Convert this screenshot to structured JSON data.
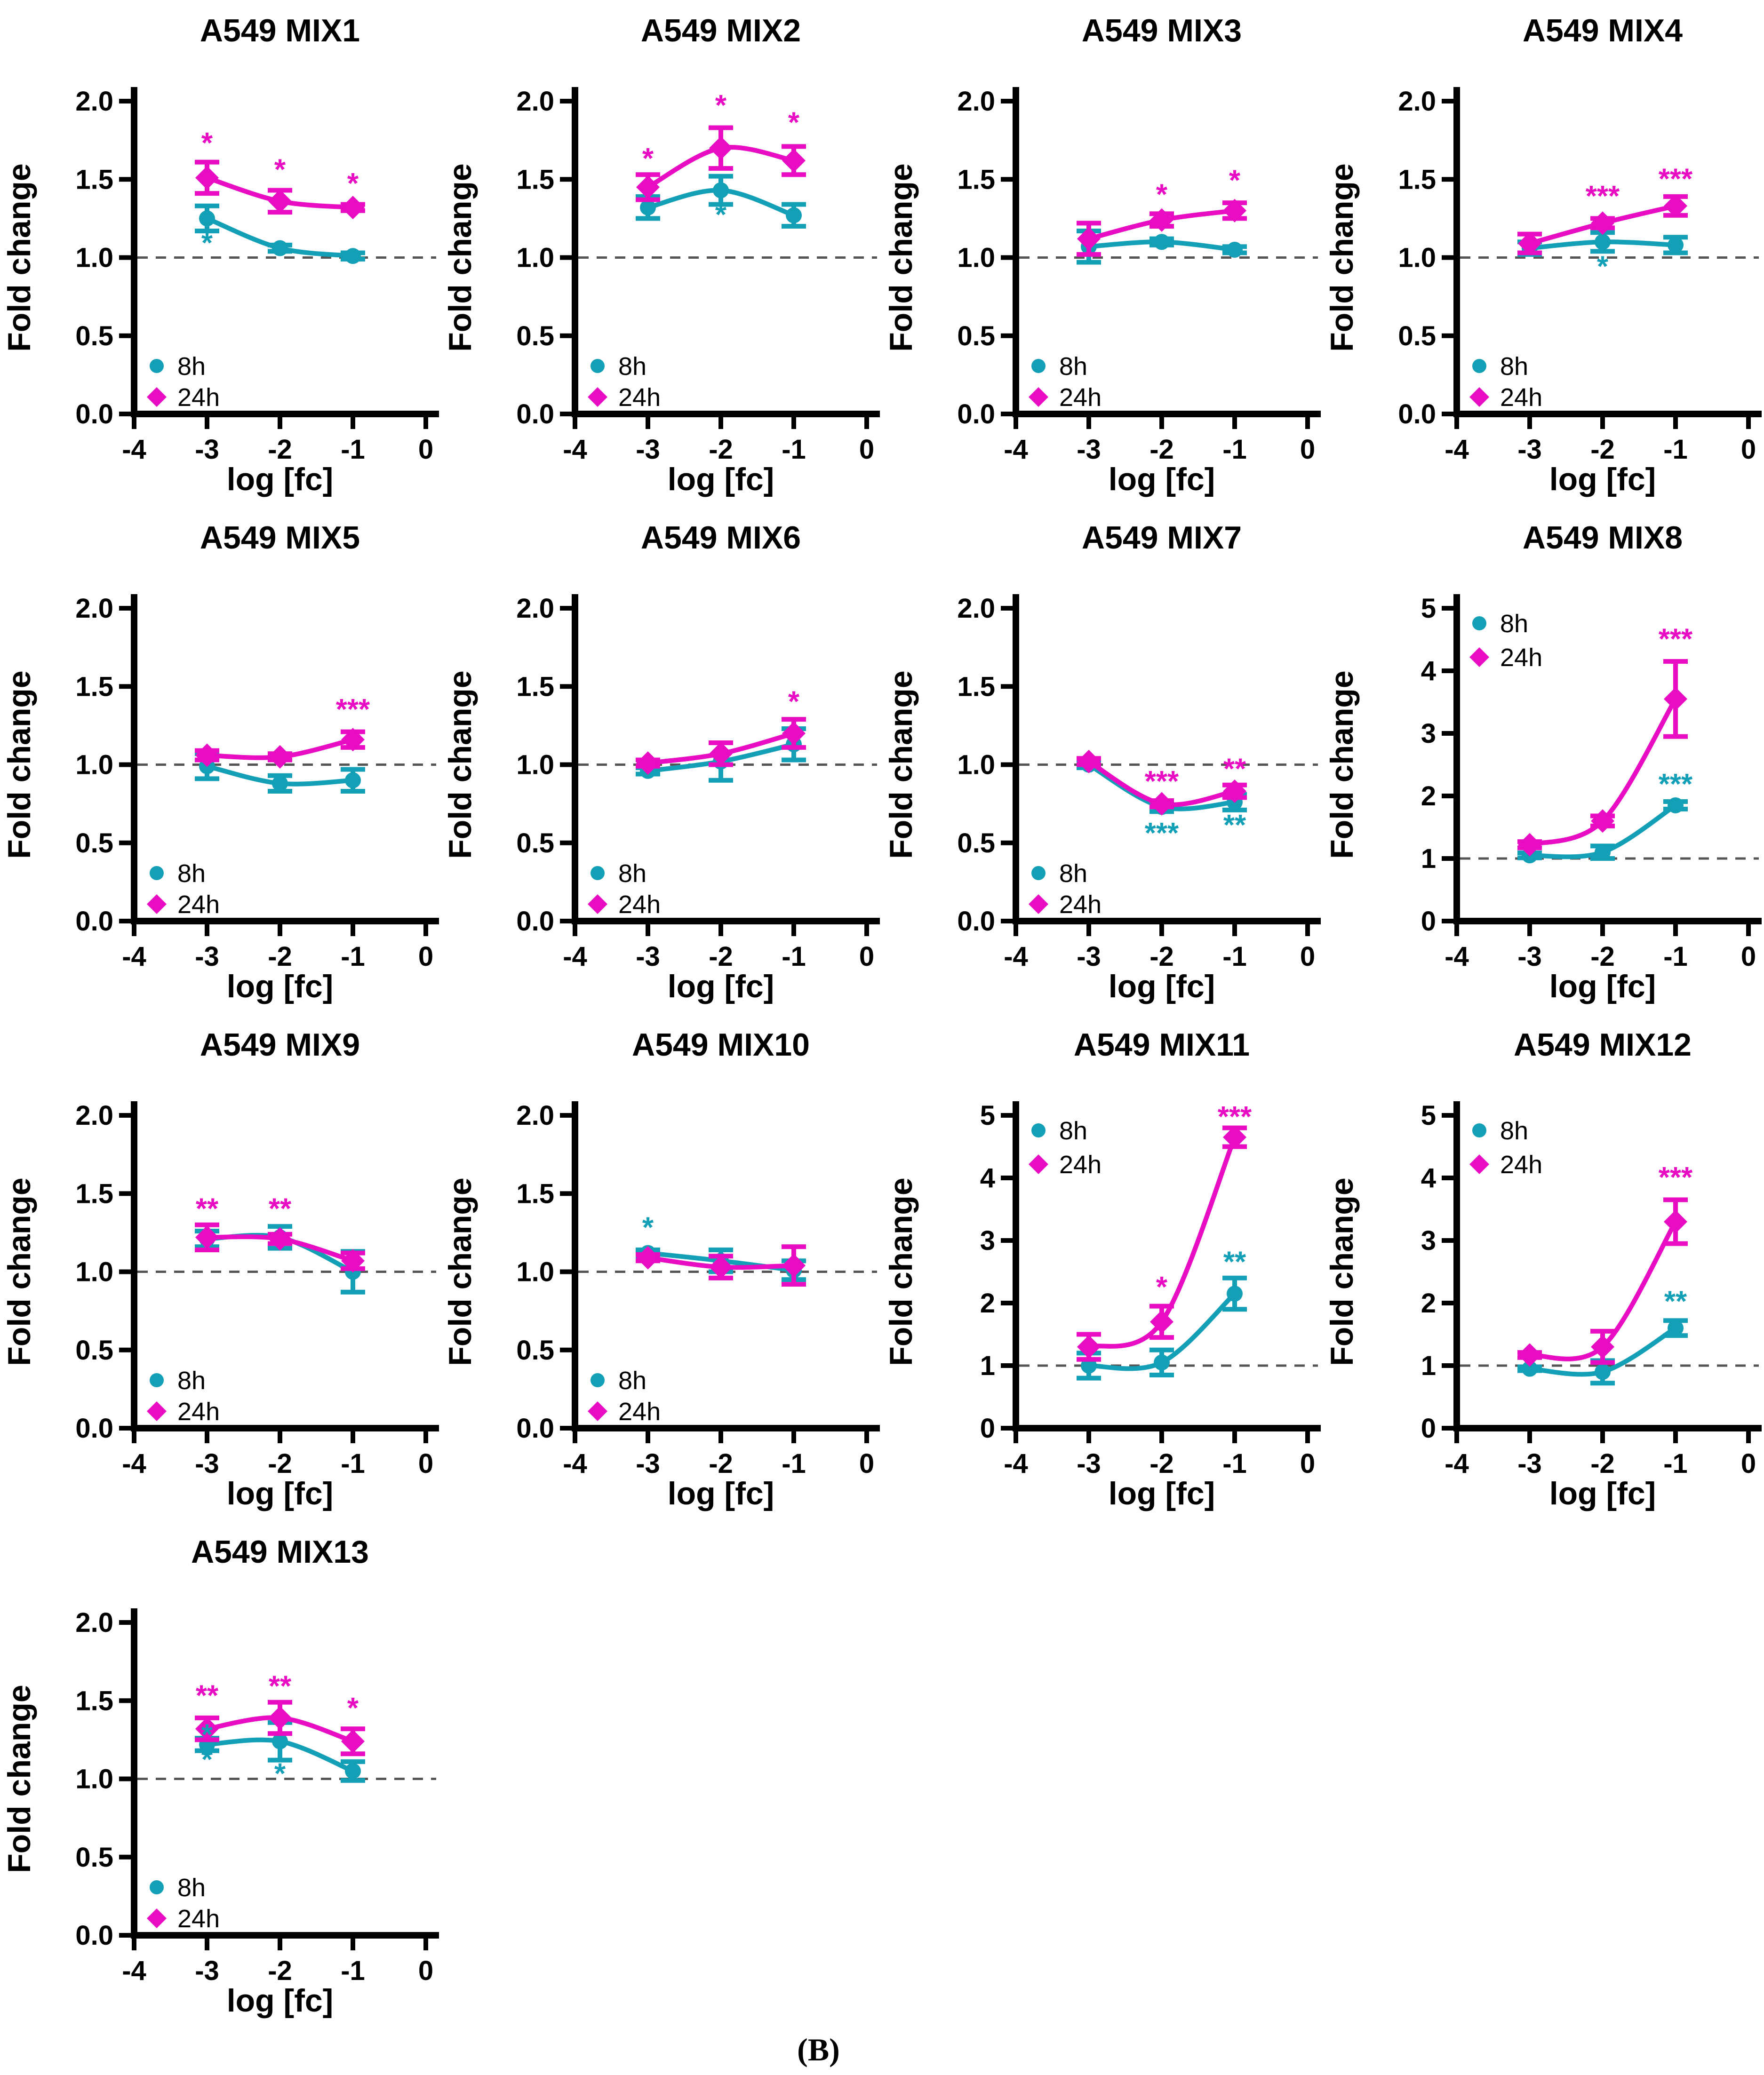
{
  "figure_label": "(B)",
  "legend": {
    "series": [
      {
        "label": "8h"
      },
      {
        "label": "24h"
      }
    ]
  },
  "colors": {
    "8h": "#139FB6",
    "24h": "#E80CC3",
    "axis": "#000000",
    "baseline": "#555555"
  },
  "axis": {
    "xlabel": "log [fc]",
    "ylabel": "Fold change",
    "xticks": [
      -4,
      -3,
      -2,
      -1,
      0
    ]
  },
  "chart_data": [
    {
      "type": "line",
      "title": "A549 MIX1",
      "x": [
        -3,
        -2,
        -1
      ],
      "ylim": [
        0,
        2
      ],
      "yticks": [
        "0.0",
        "0.5",
        "1.0",
        "1.5",
        "2.0"
      ],
      "baseline": 1,
      "legend_pos": "bottom-left",
      "series": [
        {
          "name": "8h",
          "values": [
            1.25,
            1.06,
            1.01
          ],
          "errors": [
            0.08,
            0.02,
            0.02
          ]
        },
        {
          "name": "24h",
          "values": [
            1.51,
            1.36,
            1.32
          ],
          "errors": [
            0.1,
            0.07,
            0.02
          ]
        }
      ],
      "annotations": [
        {
          "x": -3,
          "y": 1.73,
          "text": "*",
          "series": "24h"
        },
        {
          "x": -2,
          "y": 1.56,
          "text": "*",
          "series": "24h"
        },
        {
          "x": -1,
          "y": 1.47,
          "text": "*",
          "series": "24h"
        },
        {
          "x": -3,
          "y": 1.09,
          "text": "*",
          "series": "8h"
        }
      ]
    },
    {
      "type": "line",
      "title": "A549 MIX2",
      "x": [
        -3,
        -2,
        -1
      ],
      "ylim": [
        0,
        2
      ],
      "yticks": [
        "0.0",
        "0.5",
        "1.0",
        "1.5",
        "2.0"
      ],
      "baseline": 1,
      "legend_pos": "bottom-left",
      "series": [
        {
          "name": "8h",
          "values": [
            1.32,
            1.43,
            1.27
          ],
          "errors": [
            0.07,
            0.09,
            0.07
          ]
        },
        {
          "name": "24h",
          "values": [
            1.45,
            1.7,
            1.62
          ],
          "errors": [
            0.08,
            0.13,
            0.09
          ]
        }
      ],
      "annotations": [
        {
          "x": -3,
          "y": 1.63,
          "text": "*",
          "series": "24h"
        },
        {
          "x": -2,
          "y": 1.97,
          "text": "*",
          "series": "24h"
        },
        {
          "x": -1,
          "y": 1.86,
          "text": "*",
          "series": "24h"
        },
        {
          "x": -2,
          "y": 1.27,
          "text": "*",
          "series": "8h"
        }
      ]
    },
    {
      "type": "line",
      "title": "A549 MIX3",
      "x": [
        -3,
        -2,
        -1
      ],
      "ylim": [
        0,
        2
      ],
      "yticks": [
        "0.0",
        "0.5",
        "1.0",
        "1.5",
        "2.0"
      ],
      "baseline": 1,
      "legend_pos": "bottom-left",
      "series": [
        {
          "name": "8h",
          "values": [
            1.07,
            1.1,
            1.05
          ],
          "errors": [
            0.1,
            0.02,
            0.02
          ]
        },
        {
          "name": "24h",
          "values": [
            1.12,
            1.24,
            1.3
          ],
          "errors": [
            0.1,
            0.04,
            0.05
          ]
        }
      ],
      "annotations": [
        {
          "x": -2,
          "y": 1.4,
          "text": "*",
          "series": "24h"
        },
        {
          "x": -1,
          "y": 1.49,
          "text": "*",
          "series": "24h"
        }
      ]
    },
    {
      "type": "line",
      "title": "A549 MIX4",
      "x": [
        -3,
        -2,
        -1
      ],
      "ylim": [
        0,
        2
      ],
      "yticks": [
        "0.0",
        "0.5",
        "1.0",
        "1.5",
        "2.0"
      ],
      "baseline": 1,
      "legend_pos": "bottom-left",
      "series": [
        {
          "name": "8h",
          "values": [
            1.06,
            1.1,
            1.08
          ],
          "errors": [
            0.04,
            0.06,
            0.05
          ]
        },
        {
          "name": "24h",
          "values": [
            1.09,
            1.22,
            1.33
          ],
          "errors": [
            0.06,
            0.03,
            0.06
          ]
        }
      ],
      "annotations": [
        {
          "x": -2,
          "y": 1.39,
          "text": "***",
          "series": "24h"
        },
        {
          "x": -1,
          "y": 1.5,
          "text": "***",
          "series": "24h"
        },
        {
          "x": -2,
          "y": 0.94,
          "text": "*",
          "series": "8h"
        }
      ]
    },
    {
      "type": "line",
      "title": "A549 MIX5",
      "x": [
        -3,
        -2,
        -1
      ],
      "ylim": [
        0,
        2
      ],
      "yticks": [
        "0.0",
        "0.5",
        "1.0",
        "1.5",
        "2.0"
      ],
      "baseline": 1,
      "legend_pos": "bottom-left",
      "series": [
        {
          "name": "8h",
          "values": [
            0.99,
            0.88,
            0.9
          ],
          "errors": [
            0.08,
            0.05,
            0.07
          ]
        },
        {
          "name": "24h",
          "values": [
            1.06,
            1.05,
            1.16
          ],
          "errors": [
            0.03,
            0.02,
            0.05
          ]
        }
      ],
      "annotations": [
        {
          "x": -1,
          "y": 1.35,
          "text": "***",
          "series": "24h"
        }
      ]
    },
    {
      "type": "line",
      "title": "A549 MIX6",
      "x": [
        -3,
        -2,
        -1
      ],
      "ylim": [
        0,
        2
      ],
      "yticks": [
        "0.0",
        "0.5",
        "1.0",
        "1.5",
        "2.0"
      ],
      "baseline": 1,
      "legend_pos": "bottom-left",
      "series": [
        {
          "name": "8h",
          "values": [
            0.96,
            1.02,
            1.13
          ],
          "errors": [
            0.02,
            0.12,
            0.1
          ]
        },
        {
          "name": "24h",
          "values": [
            1.01,
            1.07,
            1.2
          ],
          "errors": [
            0.02,
            0.07,
            0.09
          ]
        }
      ],
      "annotations": [
        {
          "x": -1,
          "y": 1.4,
          "text": "*",
          "series": "24h"
        }
      ]
    },
    {
      "type": "line",
      "title": "A549 MIX7",
      "x": [
        -3,
        -2,
        -1
      ],
      "ylim": [
        0,
        2
      ],
      "yticks": [
        "0.0",
        "0.5",
        "1.0",
        "1.5",
        "2.0"
      ],
      "baseline": 1,
      "legend_pos": "bottom-left",
      "series": [
        {
          "name": "8h",
          "values": [
            1.0,
            0.73,
            0.76
          ],
          "errors": [
            0.02,
            0.03,
            0.05
          ]
        },
        {
          "name": "24h",
          "values": [
            1.02,
            0.75,
            0.83
          ],
          "errors": [
            0.02,
            0.02,
            0.04
          ]
        }
      ],
      "annotations": [
        {
          "x": -2,
          "y": 0.89,
          "text": "***",
          "series": "24h"
        },
        {
          "x": -2,
          "y": 0.56,
          "text": "***",
          "series": "8h"
        },
        {
          "x": -1,
          "y": 0.97,
          "text": "**",
          "series": "24h"
        },
        {
          "x": -1,
          "y": 0.61,
          "text": "**",
          "series": "8h"
        }
      ]
    },
    {
      "type": "line",
      "title": "A549 MIX8",
      "x": [
        -3,
        -2,
        -1
      ],
      "ylim": [
        0,
        5
      ],
      "yticks": [
        "0",
        "1",
        "2",
        "3",
        "4",
        "5"
      ],
      "baseline": 1,
      "legend_pos": "top-left",
      "series": [
        {
          "name": "8h",
          "values": [
            1.05,
            1.1,
            1.85
          ],
          "errors": [
            0.04,
            0.1,
            0.06
          ]
        },
        {
          "name": "24h",
          "values": [
            1.22,
            1.6,
            3.55
          ],
          "errors": [
            0.05,
            0.08,
            0.6
          ]
        }
      ],
      "annotations": [
        {
          "x": -1,
          "y": 4.5,
          "text": "***",
          "series": "24h"
        },
        {
          "x": -1,
          "y": 2.18,
          "text": "***",
          "series": "8h"
        }
      ]
    },
    {
      "type": "line",
      "title": "A549 MIX9",
      "x": [
        -3,
        -2,
        -1
      ],
      "ylim": [
        0,
        2
      ],
      "yticks": [
        "0.0",
        "0.5",
        "1.0",
        "1.5",
        "2.0"
      ],
      "baseline": 1,
      "legend_pos": "bottom-left",
      "series": [
        {
          "name": "8h",
          "values": [
            1.21,
            1.22,
            1.0
          ],
          "errors": [
            0.05,
            0.07,
            0.13
          ]
        },
        {
          "name": "24h",
          "values": [
            1.22,
            1.21,
            1.07
          ],
          "errors": [
            0.08,
            0.03,
            0.05
          ]
        }
      ],
      "annotations": [
        {
          "x": -3,
          "y": 1.4,
          "text": "**",
          "series": "24h"
        },
        {
          "x": -2,
          "y": 1.4,
          "text": "**",
          "series": "24h"
        }
      ]
    },
    {
      "type": "line",
      "title": "A549 MIX10",
      "x": [
        -3,
        -2,
        -1
      ],
      "ylim": [
        0,
        2
      ],
      "yticks": [
        "0.0",
        "0.5",
        "1.0",
        "1.5",
        "2.0"
      ],
      "baseline": 1,
      "legend_pos": "bottom-left",
      "series": [
        {
          "name": "8h",
          "values": [
            1.12,
            1.07,
            1.01
          ],
          "errors": [
            0.02,
            0.07,
            0.06
          ]
        },
        {
          "name": "24h",
          "values": [
            1.09,
            1.03,
            1.04
          ],
          "errors": [
            0.02,
            0.07,
            0.12
          ]
        }
      ],
      "annotations": [
        {
          "x": -3,
          "y": 1.28,
          "text": "*",
          "series": "8h"
        }
      ]
    },
    {
      "type": "line",
      "title": "A549 MIX11",
      "x": [
        -3,
        -2,
        -1
      ],
      "ylim": [
        0,
        5
      ],
      "yticks": [
        "0",
        "1",
        "2",
        "3",
        "4",
        "5"
      ],
      "baseline": 1,
      "legend_pos": "top-left",
      "series": [
        {
          "name": "8h",
          "values": [
            1.0,
            1.05,
            2.15
          ],
          "errors": [
            0.2,
            0.2,
            0.25
          ]
        },
        {
          "name": "24h",
          "values": [
            1.3,
            1.7,
            4.65
          ],
          "errors": [
            0.2,
            0.25,
            0.15
          ]
        }
      ],
      "annotations": [
        {
          "x": -2,
          "y": 2.25,
          "text": "*",
          "series": "24h"
        },
        {
          "x": -1,
          "y": 4.97,
          "text": "***",
          "series": "24h"
        },
        {
          "x": -1,
          "y": 2.65,
          "text": "**",
          "series": "8h"
        }
      ]
    },
    {
      "type": "line",
      "title": "A549 MIX12",
      "x": [
        -3,
        -2,
        -1
      ],
      "ylim": [
        0,
        5
      ],
      "yticks": [
        "0",
        "1",
        "2",
        "3",
        "4",
        "5"
      ],
      "baseline": 1,
      "legend_pos": "top-left",
      "series": [
        {
          "name": "8h",
          "values": [
            0.95,
            0.9,
            1.6
          ],
          "errors": [
            0.03,
            0.18,
            0.12
          ]
        },
        {
          "name": "24h",
          "values": [
            1.17,
            1.3,
            3.3
          ],
          "errors": [
            0.04,
            0.25,
            0.35
          ]
        }
      ],
      "annotations": [
        {
          "x": -1,
          "y": 4.0,
          "text": "***",
          "series": "24h"
        },
        {
          "x": -1,
          "y": 2.02,
          "text": "**",
          "series": "8h"
        }
      ]
    },
    {
      "type": "line",
      "title": "A549 MIX13",
      "x": [
        -3,
        -2,
        -1
      ],
      "ylim": [
        0,
        2
      ],
      "yticks": [
        "0.0",
        "0.5",
        "1.0",
        "1.5",
        "2.0"
      ],
      "baseline": 1,
      "legend_pos": "bottom-left",
      "series": [
        {
          "name": "8h",
          "values": [
            1.22,
            1.24,
            1.05
          ],
          "errors": [
            0.04,
            0.12,
            0.06
          ]
        },
        {
          "name": "24h",
          "values": [
            1.32,
            1.39,
            1.24
          ],
          "errors": [
            0.07,
            0.1,
            0.08
          ]
        }
      ],
      "annotations": [
        {
          "x": -3,
          "y": 1.53,
          "text": "**",
          "series": "24h"
        },
        {
          "x": -2,
          "y": 1.59,
          "text": "**",
          "series": "24h"
        },
        {
          "x": -1,
          "y": 1.45,
          "text": "*",
          "series": "24h"
        },
        {
          "x": -3,
          "y": 1.28,
          "text": "*",
          "series": "8h"
        },
        {
          "x": -3,
          "y": 1.12,
          "text": "*",
          "series": "8h"
        },
        {
          "x": -2,
          "y": 1.03,
          "text": "*",
          "series": "8h"
        }
      ]
    }
  ]
}
